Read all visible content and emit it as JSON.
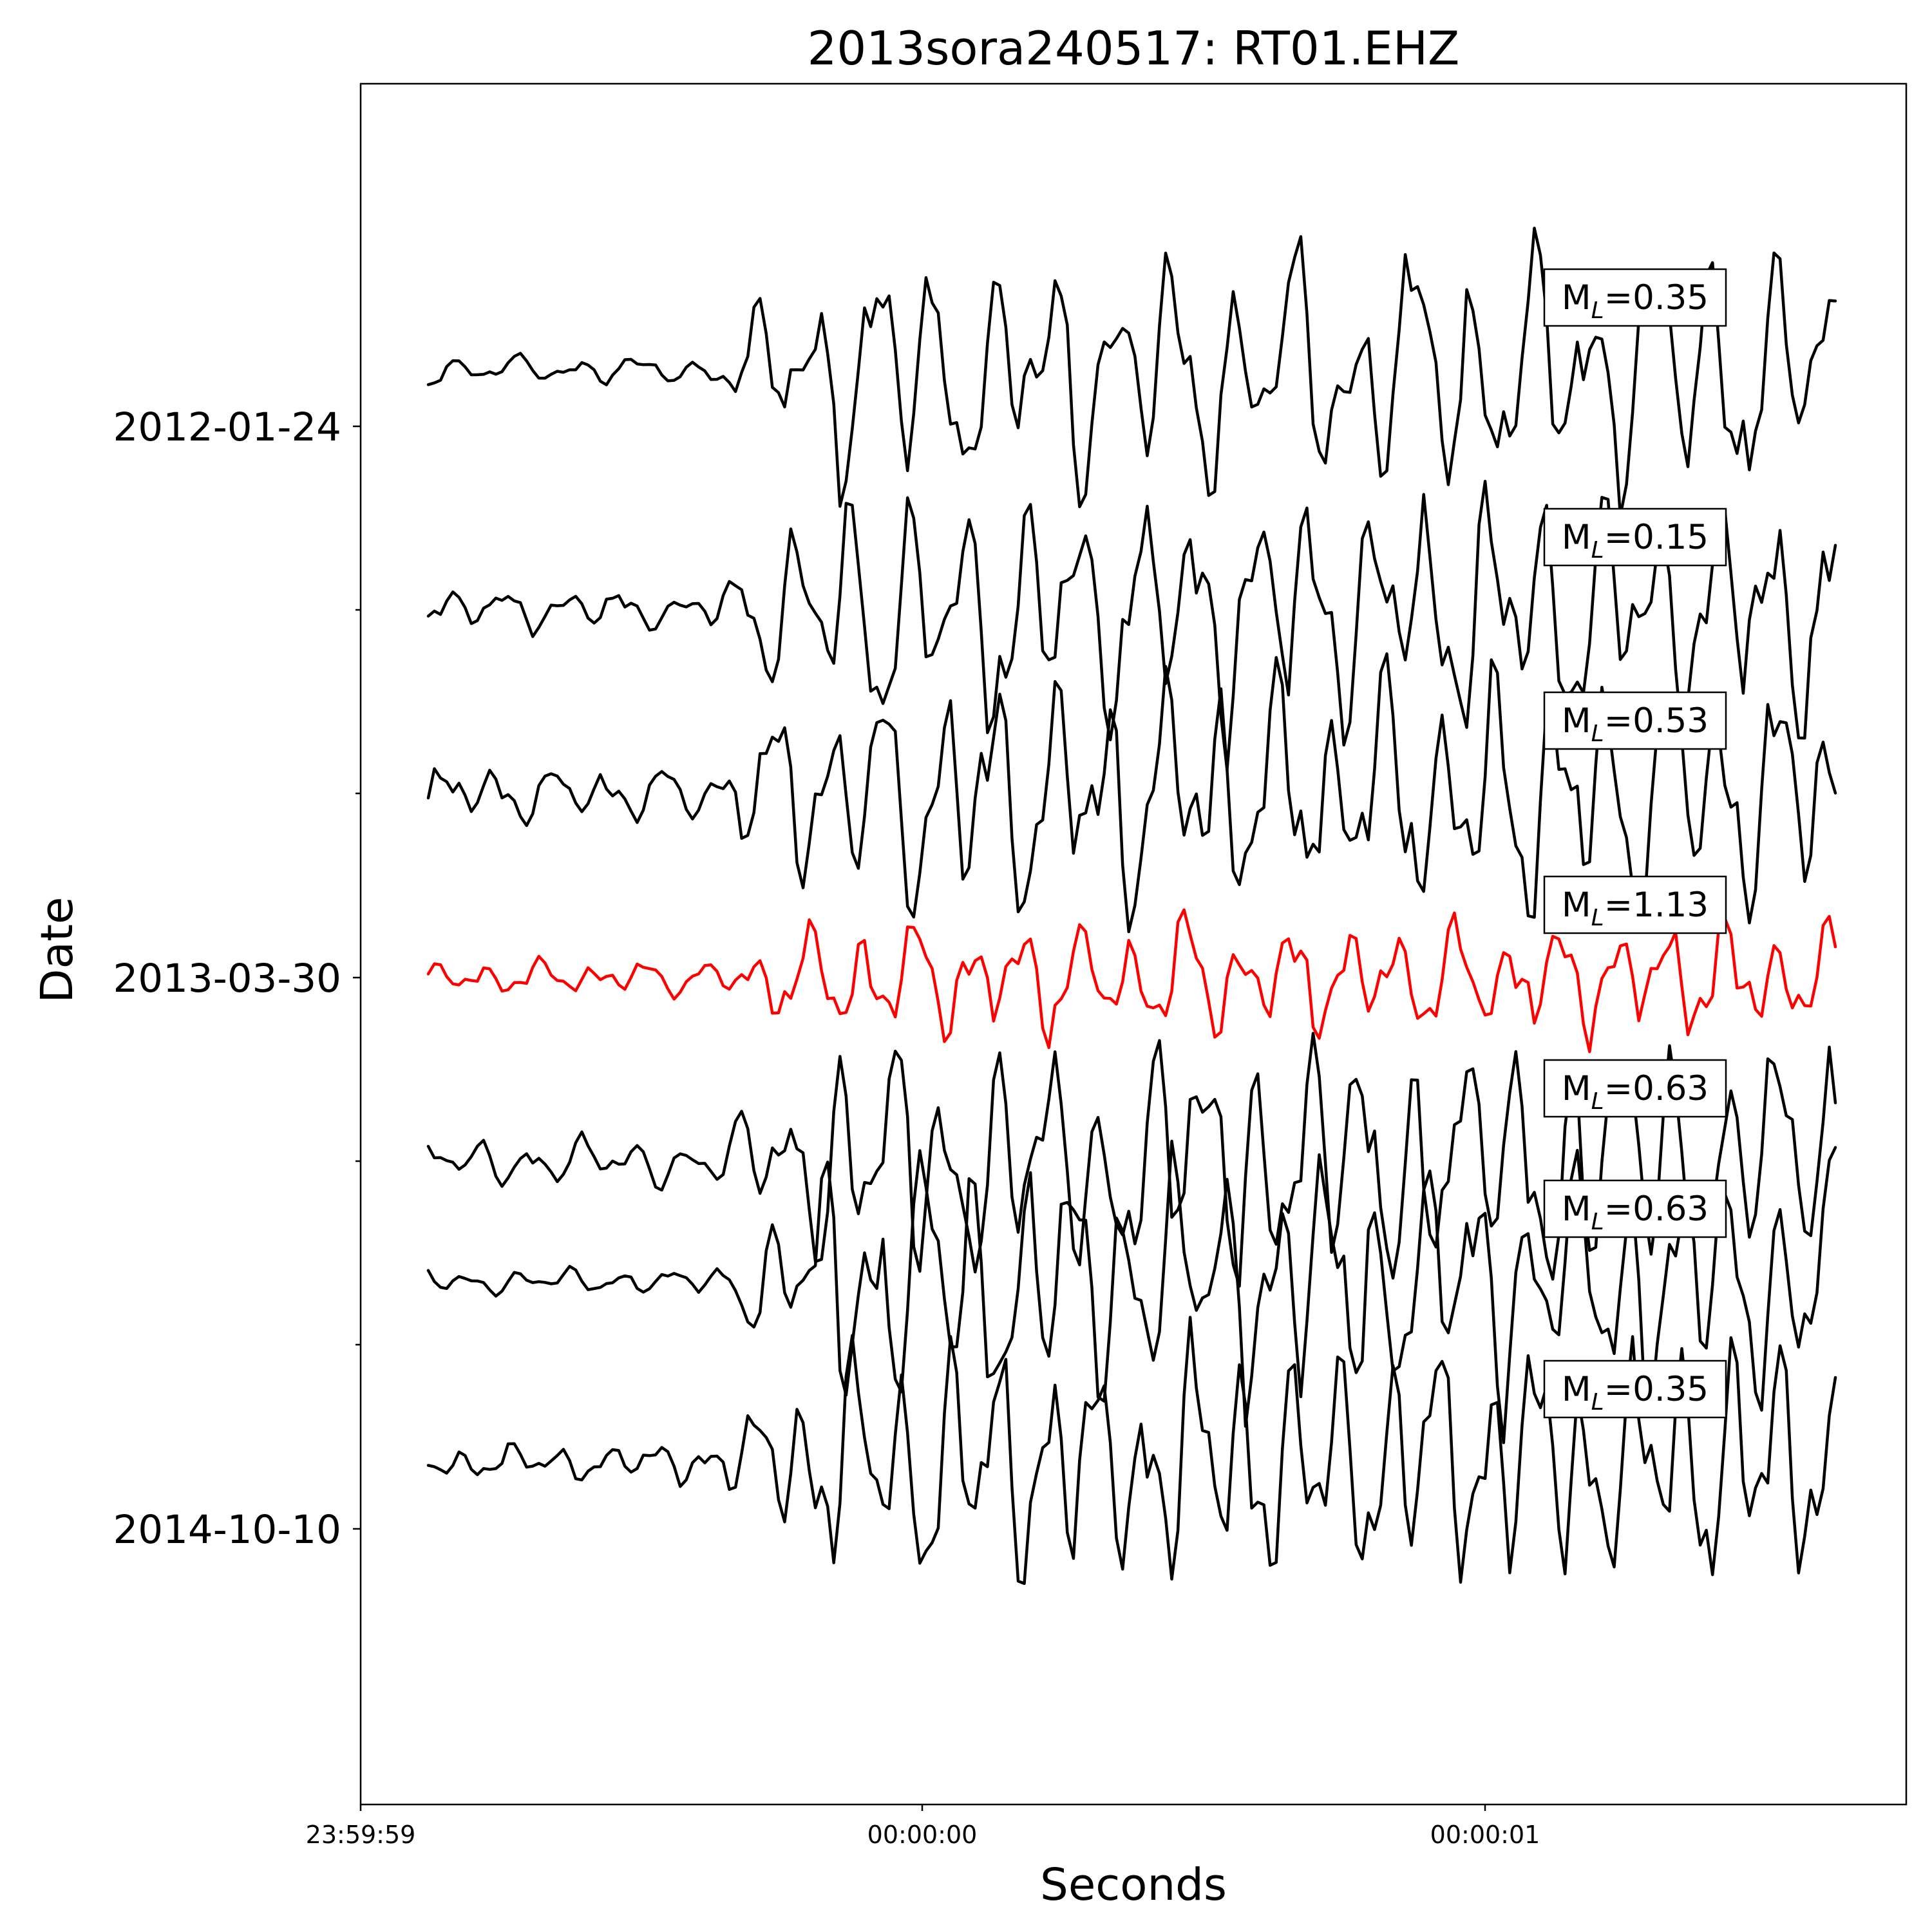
{
  "chart_data": {
    "type": "line",
    "title": "2013sora240517: RT01.EHZ",
    "xlabel": "Seconds",
    "ylabel": "Date",
    "x_tick_labels": [
      "23:59:59",
      "00:00:00",
      "00:00:01"
    ],
    "y_tick_labels": [
      "2012-01-24",
      "2013-03-30",
      "2014-10-10"
    ],
    "highlight_color": "#ff0000",
    "trace_color": "#000000",
    "grid": false,
    "legend": "none",
    "series": [
      {
        "magnitude": "0.35",
        "highlight": false
      },
      {
        "magnitude": "0.15",
        "highlight": false
      },
      {
        "magnitude": "0.53",
        "highlight": false
      },
      {
        "magnitude": "1.13",
        "highlight": true
      },
      {
        "magnitude": "0.63",
        "highlight": false
      },
      {
        "magnitude": "0.63",
        "highlight": false
      },
      {
        "magnitude": "0.35",
        "highlight": false
      }
    ]
  }
}
